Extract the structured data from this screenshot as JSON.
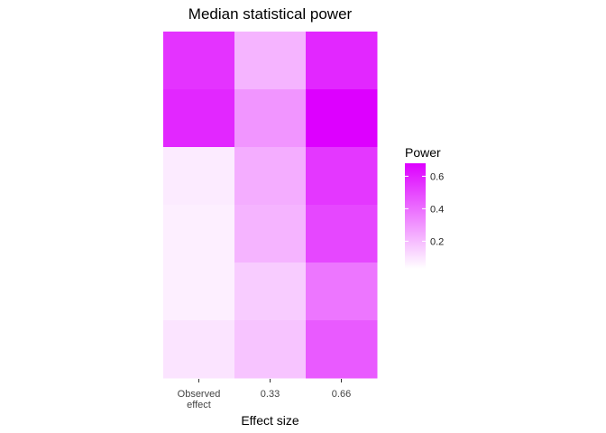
{
  "chart_data": {
    "type": "heatmap",
    "title": "Median statistical power",
    "xlabel": "Effect size",
    "ylabel": "",
    "x_categories": [
      [
        "Observed",
        "effect"
      ],
      [
        "0.33"
      ],
      [
        "0.66"
      ]
    ],
    "row_count": 6,
    "values": [
      [
        0.55,
        0.22,
        0.58
      ],
      [
        0.58,
        0.3,
        0.68
      ],
      [
        0.08,
        0.24,
        0.54
      ],
      [
        0.07,
        0.22,
        0.5
      ],
      [
        0.07,
        0.16,
        0.38
      ],
      [
        0.1,
        0.18,
        0.45
      ]
    ],
    "color_scale": {
      "low": "#ffffff",
      "high": "#dd00ff",
      "domain": [
        0.03,
        0.68
      ]
    },
    "legend": {
      "title": "Power",
      "ticks": [
        0.2,
        0.4,
        0.6
      ],
      "tick_labels": [
        "0.2",
        "0.4",
        "0.6"
      ],
      "position": "right"
    },
    "grid": false
  }
}
